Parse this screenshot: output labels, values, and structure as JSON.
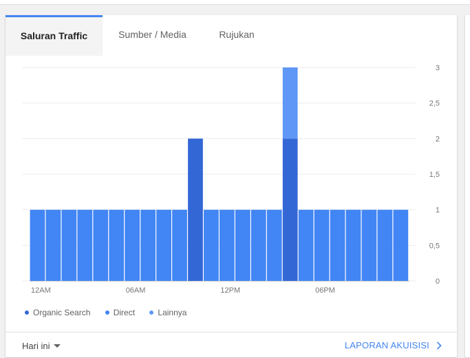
{
  "tabs": [
    {
      "label": "Saluran Traffic",
      "active": true
    },
    {
      "label": "Sumber / Media",
      "active": false
    },
    {
      "label": "Rujukan",
      "active": false
    }
  ],
  "legend": [
    {
      "label": "Organic Search",
      "color": "#3367d6"
    },
    {
      "label": "Direct",
      "color": "#4285f4"
    },
    {
      "label": "Lainnya",
      "color": "#5e97f6"
    }
  ],
  "footer": {
    "range_label": "Hari ini",
    "report_link": "LAPORAN AKUISISI"
  },
  "colors": {
    "accent": "#4285f4",
    "dark": "#3367d6",
    "direct": "#4285f4",
    "other": "#5e97f6"
  },
  "chart_data": {
    "type": "bar",
    "stacked": true,
    "title": "",
    "xlabel": "",
    "ylabel": "",
    "ylim": [
      0,
      3
    ],
    "y_ticks": [
      "0",
      "0,5",
      "1",
      "1,5",
      "2",
      "2,5",
      "3"
    ],
    "x_tick_labels": [
      {
        "label": "12AM",
        "index": 0
      },
      {
        "label": "06AM",
        "index": 6
      },
      {
        "label": "12PM",
        "index": 12
      },
      {
        "label": "06PM",
        "index": 18
      }
    ],
    "categories": [
      "0",
      "1",
      "2",
      "3",
      "4",
      "5",
      "6",
      "7",
      "8",
      "9",
      "10",
      "11",
      "12",
      "13",
      "14",
      "15",
      "16",
      "17",
      "18",
      "19",
      "20",
      "21",
      "22",
      "23"
    ],
    "series": [
      {
        "name": "Organic Search",
        "values": [
          0,
          0,
          0,
          0,
          0,
          0,
          0,
          0,
          0,
          0,
          2,
          0,
          0,
          0,
          0,
          0,
          2,
          0,
          0,
          0,
          0,
          0,
          0,
          0
        ]
      },
      {
        "name": "Direct",
        "values": [
          1,
          1,
          1,
          1,
          1,
          1,
          1,
          1,
          1,
          1,
          0,
          1,
          1,
          1,
          1,
          1,
          0,
          1,
          1,
          1,
          1,
          1,
          1,
          1
        ]
      },
      {
        "name": "Lainnya",
        "values": [
          0,
          0,
          0,
          0,
          0,
          0,
          0,
          0,
          0,
          0,
          0,
          0,
          0,
          0,
          0,
          0,
          1,
          0,
          0,
          0,
          0,
          0,
          0,
          0
        ]
      }
    ]
  }
}
